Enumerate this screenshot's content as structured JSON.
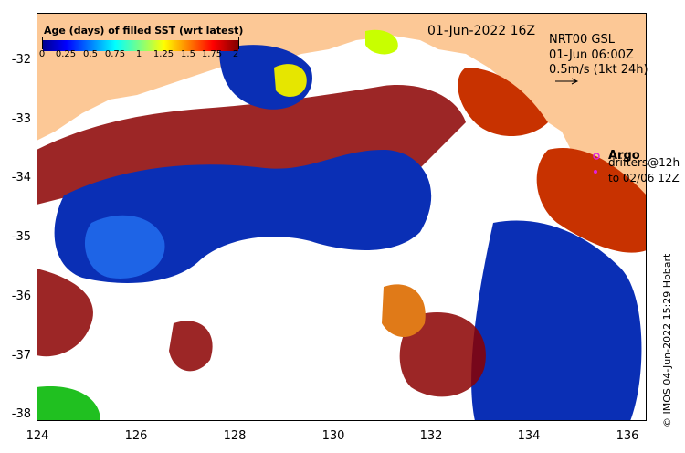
{
  "map": {
    "date_label": "01-Jun-2022 16Z",
    "product": {
      "line1": "NRT00 GSL",
      "line2": "01-Jun 06:00Z",
      "line3": "0.5m/s (1kt 24h)"
    },
    "legend": {
      "argo": "Argo",
      "drifters_line1": "drifters@12h",
      "drifters_line2": "to 02/06 12Z"
    },
    "credit": "© IMOS 04-Jun-2022 15:29 Hobart",
    "colorbar": {
      "title": "Age (days) of filled SST (wrt latest)",
      "ticks": [
        "0",
        "0.25",
        "0.5",
        "0.75",
        "1",
        "1.25",
        "1.5",
        "1.75",
        "2"
      ],
      "range": [
        0,
        2
      ]
    },
    "axes": {
      "lon_ticks": [
        "124",
        "126",
        "128",
        "130",
        "132",
        "134",
        "136"
      ],
      "lat_ticks": [
        "-32",
        "-33",
        "-34",
        "-35",
        "-36",
        "-37",
        "-38"
      ],
      "lon_range": [
        124,
        136.4
      ],
      "lat_range": [
        -38.1,
        -31.1
      ]
    },
    "colors": {
      "land": "#fcc896",
      "no_data": "#ffffff",
      "argo": "#e020e0",
      "drifter": "#e020e0"
    }
  }
}
